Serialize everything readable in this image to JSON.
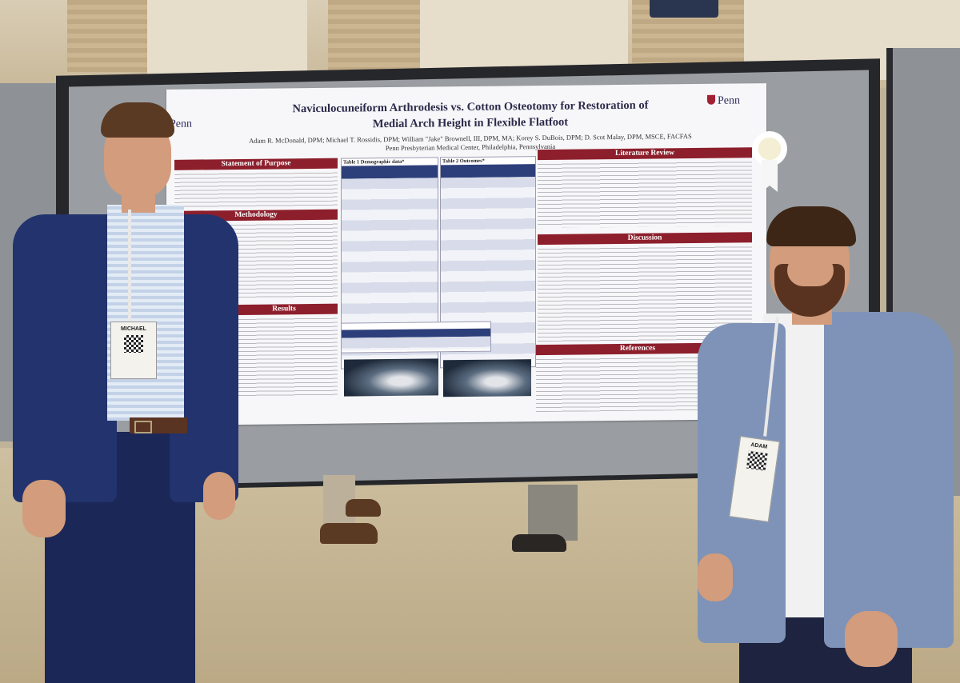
{
  "poster": {
    "title_line1": "Naviculocuneiform Arthrodesis vs. Cotton Osteotomy for Restoration of",
    "title_line2": "Medial Arch Height in Flexible Flatfoot",
    "authors": "Adam R. McDonald, DPM; Michael T. Rossidis, DPM; William \"Jake\" Brownell, III, DPM, MA; Korey S. DuBois, DPM; D. Scot Malay, DPM, MSCE, FACFAS",
    "affiliation": "Penn Presbyterian Medical Center, Philadelphia, Pennsylvania",
    "logo_left": "Penn",
    "logo_right": "Penn",
    "sections": {
      "purpose": "Statement of Purpose",
      "methodology": "Methodology",
      "results": "Results",
      "literature": "Literature Review",
      "discussion": "Discussion",
      "references": "References"
    },
    "table1_caption": "Table 1 Demographic data*",
    "table2_caption": "Table 2 Outcomes*"
  },
  "badges": {
    "left_name": "MICHAEL",
    "right_name": "ADAM"
  },
  "colors": {
    "poster_header_red": "#8d1f2c",
    "table_header_blue": "#2d3f7a",
    "suit_left": "#22336e",
    "suit_right": "#7e93b7"
  }
}
